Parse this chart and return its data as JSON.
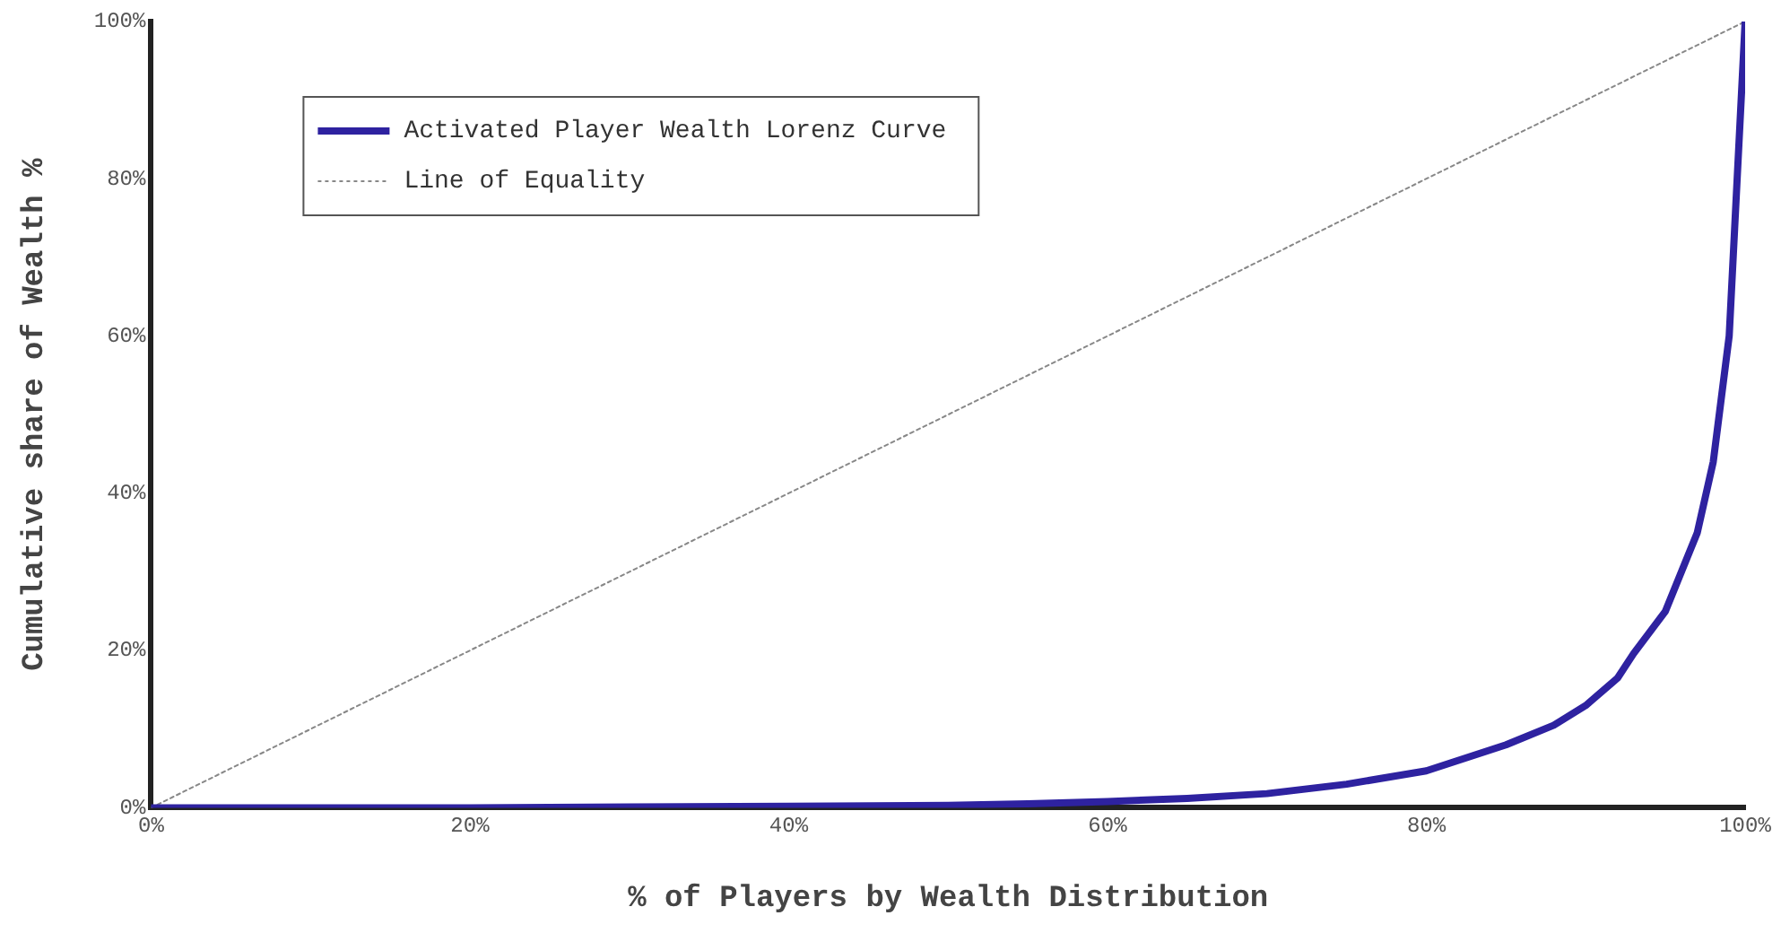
{
  "chart_data": {
    "type": "line",
    "xlabel": "% of Players by Wealth Distribution",
    "ylabel": "Cumulative share of Wealth %",
    "xlim": [
      0,
      100
    ],
    "ylim": [
      0,
      100
    ],
    "xticks": [
      {
        "value": 0,
        "label": "0%"
      },
      {
        "value": 20,
        "label": "20%"
      },
      {
        "value": 40,
        "label": "40%"
      },
      {
        "value": 60,
        "label": "60%"
      },
      {
        "value": 80,
        "label": "80%"
      },
      {
        "value": 100,
        "label": "100%"
      }
    ],
    "yticks": [
      {
        "value": 0,
        "label": "0%"
      },
      {
        "value": 20,
        "label": "20%"
      },
      {
        "value": 40,
        "label": "40%"
      },
      {
        "value": 60,
        "label": "60%"
      },
      {
        "value": 80,
        "label": "80%"
      },
      {
        "value": 100,
        "label": "100%"
      }
    ],
    "grid": false,
    "legend": "top left",
    "marker": "none",
    "series": [
      {
        "name": "Activated Player Wealth Lorenz Curve",
        "color": "#2e22a0",
        "line_style": "solid",
        "x": [
          0,
          10,
          20,
          30,
          40,
          50,
          55,
          60,
          65,
          70,
          75,
          80,
          85,
          88,
          90,
          92,
          93,
          95,
          96,
          97,
          98,
          99,
          99.5,
          100
        ],
        "values": [
          0,
          0,
          0,
          0.1,
          0.2,
          0.3,
          0.5,
          0.8,
          1.2,
          1.8,
          3,
          4.7,
          8,
          10.5,
          13,
          16.5,
          19.6,
          25,
          30,
          35,
          44,
          60,
          80,
          100
        ]
      },
      {
        "name": "Line of Equality",
        "color": "#888888",
        "line_style": "dotted",
        "x": [
          0,
          100
        ],
        "values": [
          0,
          100
        ]
      }
    ]
  }
}
